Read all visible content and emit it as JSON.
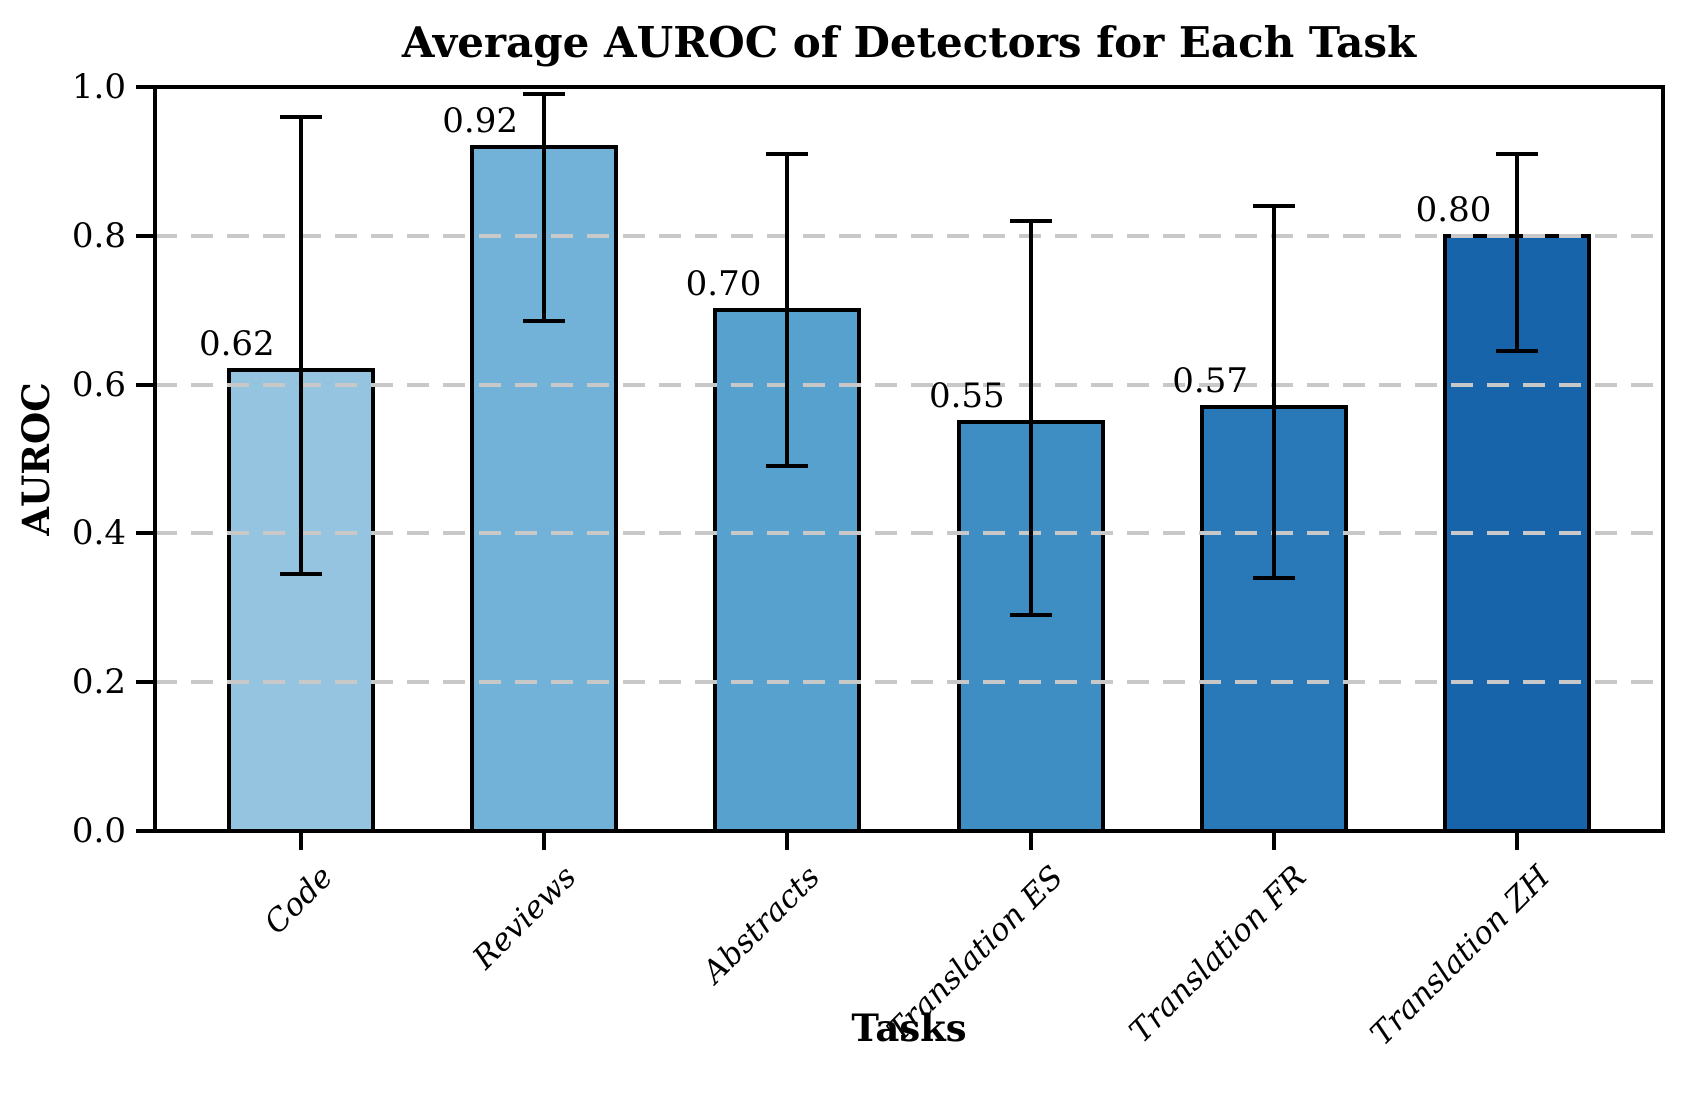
{
  "figure": {
    "title": "Average AUROC of Detectors for Each Task",
    "y_axis": {
      "label": "AUROC",
      "tick_labels": [
        "0.0",
        "0.2",
        "0.4",
        "0.6",
        "0.8",
        "1.0"
      ]
    },
    "x_axis": {
      "label": "Tasks"
    }
  },
  "chart_data": {
    "type": "bar",
    "title": "Average AUROC of Detectors for Each Task",
    "xlabel": "Tasks",
    "ylabel": "AUROC",
    "categories": [
      "Code",
      "Reviews",
      "Abstracts",
      "Translation ES",
      "Translation FR",
      "Translation ZH"
    ],
    "values": [
      0.62,
      0.92,
      0.7,
      0.55,
      0.57,
      0.8
    ],
    "bar_value_labels": [
      "0.62",
      "0.92",
      "0.70",
      "0.55",
      "0.57",
      "0.80"
    ],
    "error_bars": {
      "low": [
        0.345,
        0.685,
        0.49,
        0.29,
        0.34,
        0.645
      ],
      "high": [
        0.96,
        0.99,
        0.91,
        0.82,
        0.84,
        0.91
      ]
    },
    "bar_colors": [
      "#94c4df",
      "#73b2d8",
      "#57a1ce",
      "#3e8ec4",
      "#2979b9",
      "#1764ab"
    ],
    "bar_edge_color": "#000000",
    "error_bar_color": "#000000",
    "ylim": [
      0.0,
      1.0
    ],
    "yticks": [
      0.0,
      0.2,
      0.4,
      0.6,
      0.8,
      1.0
    ],
    "ytick_labels": [
      "0.0",
      "0.2",
      "0.4",
      "0.6",
      "0.8",
      "1.0"
    ],
    "grid": {
      "axis": "y",
      "style": "dashed",
      "color": "#c8c8c8",
      "drawn_over_bars": true
    },
    "legend": "none",
    "background_color": "#ffffff"
  }
}
